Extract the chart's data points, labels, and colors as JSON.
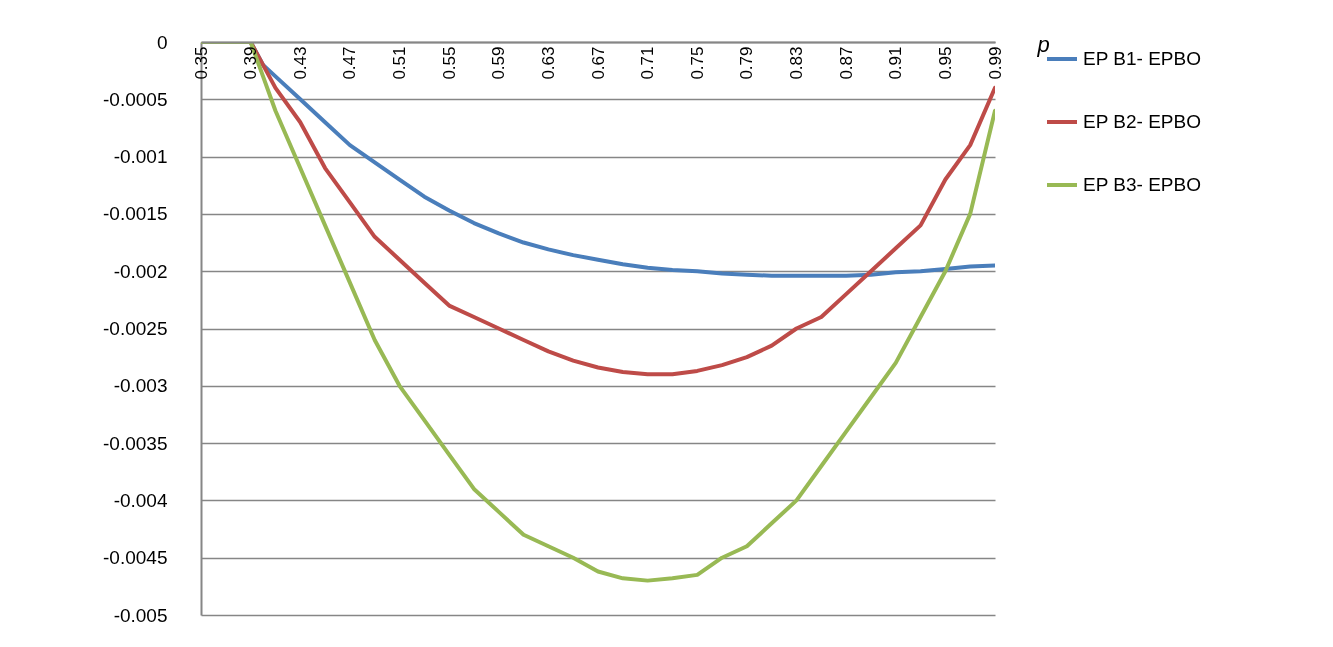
{
  "chart_data": {
    "type": "line",
    "xlabel": "p",
    "legend": "right",
    "grid": "y",
    "marker": "none",
    "line_style": "solid",
    "x": [
      0.35,
      0.37,
      0.38,
      0.39,
      0.4,
      0.41,
      0.43,
      0.45,
      0.47,
      0.49,
      0.51,
      0.53,
      0.55,
      0.57,
      0.59,
      0.61,
      0.63,
      0.65,
      0.67,
      0.69,
      0.71,
      0.73,
      0.75,
      0.77,
      0.79,
      0.81,
      0.83,
      0.85,
      0.87,
      0.89,
      0.91,
      0.93,
      0.95,
      0.97,
      0.99
    ],
    "xlim": [
      0.35,
      0.99
    ],
    "xticks": [
      0.35,
      0.39,
      0.43,
      0.47,
      0.51,
      0.55,
      0.59,
      0.63,
      0.67,
      0.71,
      0.75,
      0.79,
      0.83,
      0.87,
      0.91,
      0.95,
      0.99
    ],
    "ylim": [
      -0.005,
      0
    ],
    "yticks": [
      0,
      -0.0005,
      -0.001,
      -0.0015,
      -0.002,
      -0.0025,
      -0.003,
      -0.0035,
      -0.004,
      -0.0045,
      -0.005
    ],
    "series": [
      {
        "name": "EP B1- EPBO",
        "color": "#4a7ebb",
        "values": [
          null,
          null,
          null,
          0,
          -0.0002,
          -0.0003,
          -0.0005,
          -0.0007,
          -0.0009,
          -0.00105,
          -0.0012,
          -0.00135,
          -0.00147,
          -0.00158,
          -0.00167,
          -0.00175,
          -0.00181,
          -0.00186,
          -0.0019,
          -0.00194,
          -0.00197,
          -0.00199,
          -0.002,
          -0.00202,
          -0.00203,
          -0.00204,
          -0.00204,
          -0.00204,
          -0.00204,
          -0.00203,
          -0.00201,
          -0.002,
          -0.00198,
          -0.00196,
          -0.00195
        ]
      },
      {
        "name": "EP B2- EPBO",
        "color": "#be4b48",
        "values": [
          null,
          null,
          null,
          0,
          -0.0002,
          -0.0004,
          -0.0007,
          -0.0011,
          -0.0014,
          -0.0017,
          -0.0019,
          -0.0021,
          -0.0023,
          -0.0024,
          -0.0025,
          -0.0026,
          -0.0027,
          -0.00278,
          -0.00284,
          -0.00288,
          -0.0029,
          -0.0029,
          -0.00287,
          -0.00282,
          -0.00275,
          -0.00265,
          -0.0025,
          -0.0024,
          -0.0022,
          -0.002,
          -0.0018,
          -0.0016,
          -0.0012,
          -0.0009,
          -0.0004
        ]
      },
      {
        "name": "EP B3- EPBO",
        "color": "#98b954",
        "values": [
          0,
          0,
          0,
          0,
          -0.0003,
          -0.0006,
          -0.0011,
          -0.0016,
          -0.0021,
          -0.0026,
          -0.003,
          -0.0033,
          -0.0036,
          -0.0039,
          -0.0041,
          -0.0043,
          -0.0044,
          -0.0045,
          -0.00462,
          -0.00468,
          -0.0047,
          -0.00468,
          -0.00465,
          -0.0045,
          -0.0044,
          -0.0042,
          -0.004,
          -0.0037,
          -0.0034,
          -0.0031,
          -0.0028,
          -0.0024,
          -0.002,
          -0.0015,
          -0.0006
        ]
      }
    ]
  }
}
